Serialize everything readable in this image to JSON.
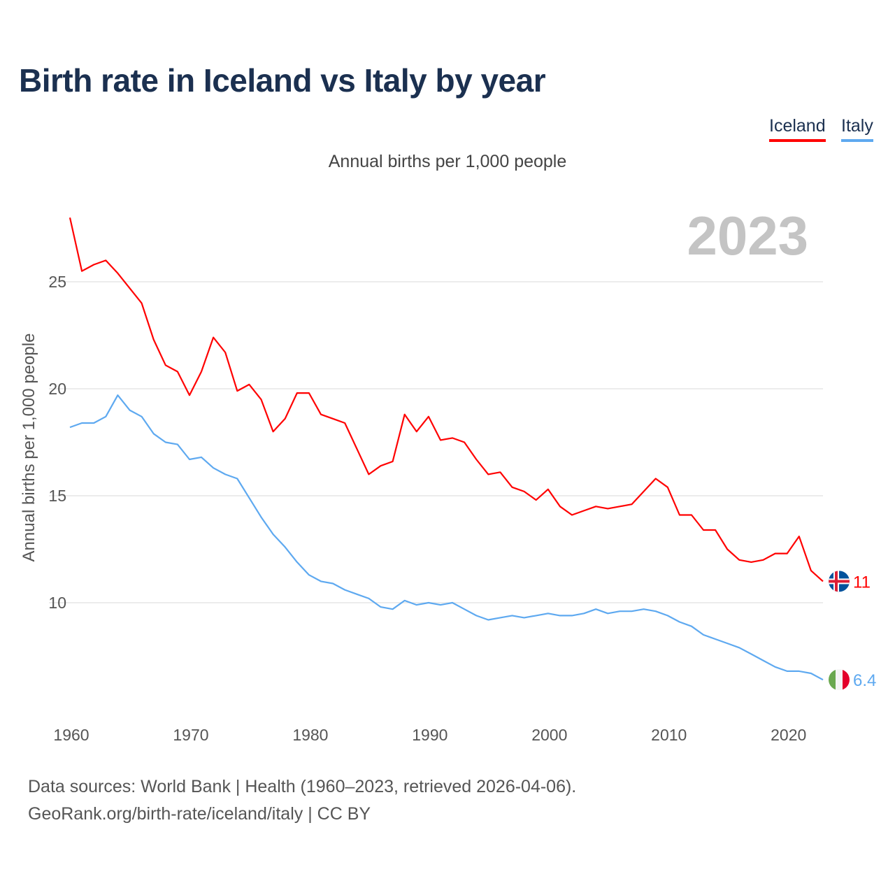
{
  "title": "Birth rate in Iceland vs Italy by year",
  "subtitle": "Annual births per 1,000 people",
  "current_year": "2023",
  "source_line1": "Data sources: World Bank | Health (1960–2023, retrieved 2026-04-06).",
  "source_line2": "GeoRank.org/birth-rate/iceland/italy | CC BY",
  "chart_data": {
    "type": "line",
    "title": "Birth rate in Iceland vs Italy by year",
    "xlabel": "",
    "ylabel": "Annual births per 1,000 people",
    "xlim": [
      1960,
      2023
    ],
    "ylim": [
      5,
      28.5
    ],
    "xticks": [
      1960,
      1970,
      1980,
      1990,
      2000,
      2010,
      2020
    ],
    "yticks": [
      10,
      15,
      20,
      25
    ],
    "grid": true,
    "legend_position": "top-right",
    "x": [
      1960,
      1961,
      1962,
      1963,
      1964,
      1965,
      1966,
      1967,
      1968,
      1969,
      1970,
      1971,
      1972,
      1973,
      1974,
      1975,
      1976,
      1977,
      1978,
      1979,
      1980,
      1981,
      1982,
      1983,
      1984,
      1985,
      1986,
      1987,
      1988,
      1989,
      1990,
      1991,
      1992,
      1993,
      1994,
      1995,
      1996,
      1997,
      1998,
      1999,
      2000,
      2001,
      2002,
      2003,
      2004,
      2005,
      2006,
      2007,
      2008,
      2009,
      2010,
      2011,
      2012,
      2013,
      2014,
      2015,
      2016,
      2017,
      2018,
      2019,
      2020,
      2021,
      2022,
      2023
    ],
    "series": [
      {
        "name": "Iceland",
        "color": "#ff0000",
        "end_label": "11",
        "flag": "iceland-flag",
        "values": [
          28.0,
          25.5,
          25.8,
          26.0,
          25.4,
          24.7,
          24.0,
          22.3,
          21.1,
          20.8,
          19.7,
          20.8,
          22.4,
          21.7,
          19.9,
          20.2,
          19.5,
          18.0,
          18.6,
          19.8,
          19.8,
          18.8,
          18.6,
          18.4,
          17.2,
          16.0,
          16.4,
          16.6,
          18.8,
          18.0,
          18.7,
          17.6,
          17.7,
          17.5,
          16.7,
          16.0,
          16.1,
          15.4,
          15.2,
          14.8,
          15.3,
          14.5,
          14.1,
          14.3,
          14.5,
          14.4,
          14.5,
          14.6,
          15.2,
          15.8,
          15.4,
          14.1,
          14.1,
          13.4,
          13.4,
          12.5,
          12.0,
          11.9,
          12.0,
          12.3,
          12.3,
          13.1,
          11.5,
          11.0
        ]
      },
      {
        "name": "Italy",
        "color": "#5ea9f0",
        "end_label": "6.4",
        "flag": "italy-flag",
        "values": [
          18.2,
          18.4,
          18.4,
          18.7,
          19.7,
          19.0,
          18.7,
          17.9,
          17.5,
          17.4,
          16.7,
          16.8,
          16.3,
          16.0,
          15.8,
          14.9,
          14.0,
          13.2,
          12.6,
          11.9,
          11.3,
          11.0,
          10.9,
          10.6,
          10.4,
          10.2,
          9.8,
          9.7,
          10.1,
          9.9,
          10.0,
          9.9,
          10.0,
          9.7,
          9.4,
          9.2,
          9.3,
          9.4,
          9.3,
          9.4,
          9.5,
          9.4,
          9.4,
          9.5,
          9.7,
          9.5,
          9.6,
          9.6,
          9.7,
          9.6,
          9.4,
          9.1,
          8.9,
          8.5,
          8.3,
          8.1,
          7.9,
          7.6,
          7.3,
          7.0,
          6.8,
          6.8,
          6.7,
          6.4
        ]
      }
    ]
  }
}
